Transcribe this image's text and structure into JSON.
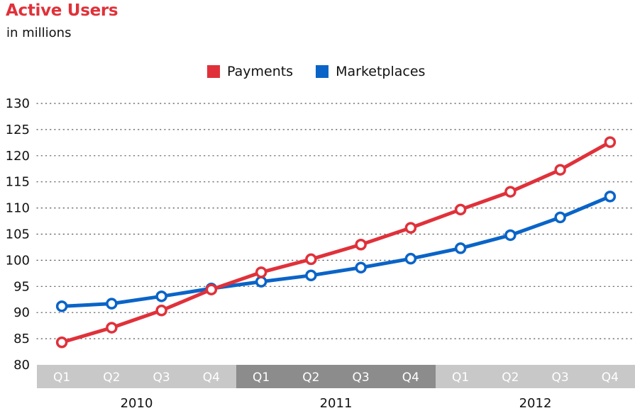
{
  "title": "Active Users",
  "subtitle": "in millions",
  "legend": [
    {
      "name": "Payments",
      "color": "#e0313a"
    },
    {
      "name": "Marketplaces",
      "color": "#0a64c8"
    }
  ],
  "chart_data": {
    "type": "line",
    "title": "Active Users",
    "subtitle": "in millions",
    "xlabel": "",
    "ylabel": "",
    "ylim": [
      80,
      130
    ],
    "yticks": [
      80,
      85,
      90,
      95,
      100,
      105,
      110,
      115,
      120,
      125,
      130
    ],
    "grid": true,
    "legend_position": "top-center",
    "years": [
      "2010",
      "2011",
      "2012"
    ],
    "categories": [
      "Q1",
      "Q2",
      "Q3",
      "Q4",
      "Q1",
      "Q2",
      "Q3",
      "Q4",
      "Q1",
      "Q2",
      "Q3",
      "Q4"
    ],
    "series": [
      {
        "name": "Payments",
        "color": "#e0313a",
        "values": [
          84.3,
          87.1,
          90.4,
          94.4,
          97.7,
          100.2,
          103.0,
          106.2,
          109.7,
          113.1,
          117.3,
          122.6
        ]
      },
      {
        "name": "Marketplaces",
        "color": "#0a64c8",
        "values": [
          91.2,
          91.7,
          93.1,
          94.6,
          95.9,
          97.1,
          98.6,
          100.3,
          102.3,
          104.8,
          108.2,
          112.2
        ]
      }
    ]
  }
}
